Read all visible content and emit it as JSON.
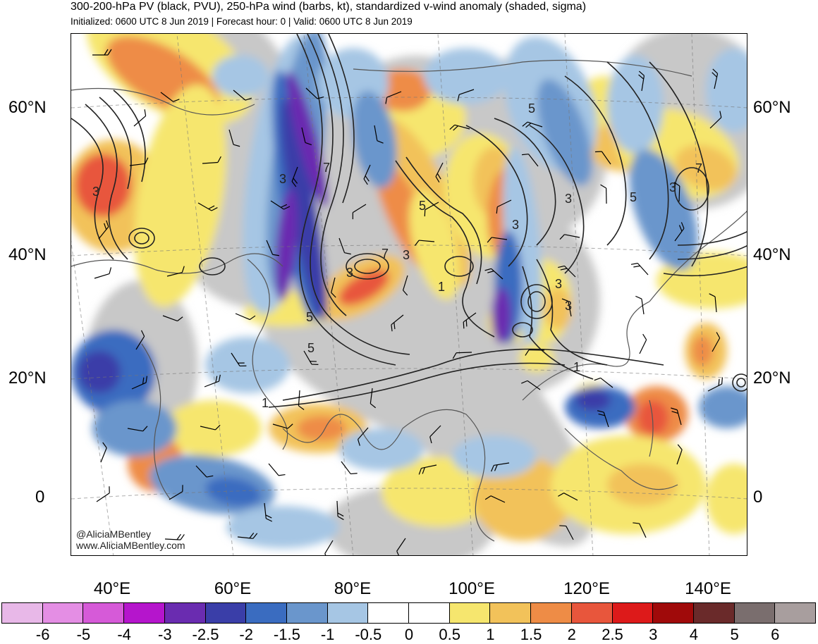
{
  "header": {
    "title": "300-200-hPa PV (black, PVU), 250-hPa wind (barbs, kt), standardized v-wind anomaly (shaded, sigma)",
    "subtitle": "Initialized: 0600 UTC 8 Jun 2019 | Forecast hour: 0 | Valid: 0600 UTC 8 Jun 2019"
  },
  "axes": {
    "lat_left": [
      "60°N",
      "40°N",
      "20°N",
      "0"
    ],
    "lat_right": [
      "60°N",
      "40°N",
      "20°N",
      "0"
    ],
    "lon": [
      "40°E",
      "60°E",
      "80°E",
      "100°E",
      "120°E",
      "140°E"
    ]
  },
  "credits": {
    "handle": "@AliciaMBentley",
    "website": "www.AliciaMBentley.com"
  },
  "contour_labels": [
    "3",
    "3",
    "7",
    "3",
    "5",
    "3",
    "3",
    "7",
    "3",
    "1",
    "5",
    "5",
    "3",
    "5",
    "3",
    "7",
    "3",
    "1",
    "1",
    "5"
  ],
  "colorbar": {
    "labels": [
      "-6",
      "-5",
      "-4",
      "-3",
      "-2.5",
      "-2",
      "-1.5",
      "-1",
      "-0.5",
      "0",
      "0.5",
      "1",
      "1.5",
      "2",
      "2.5",
      "3",
      "4",
      "5",
      "6"
    ],
    "colors": [
      "#e8b8e8",
      "#e48ee4",
      "#d65ad8",
      "#b515cc",
      "#6a2cb0",
      "#3a3ea8",
      "#3a6cc0",
      "#6a96cc",
      "#a6c6e4",
      "#ffffff",
      "#ffffff",
      "#f6e66e",
      "#f2c25a",
      "#ee8c46",
      "#e8563c",
      "#dd1a1a",
      "#a00a0a",
      "#6a2a2a",
      "#7a6e6e",
      "#a89e9e"
    ]
  },
  "colors": {
    "land_gray": "#c8c8c8",
    "contour": "#222222",
    "coastline": "#555555"
  }
}
